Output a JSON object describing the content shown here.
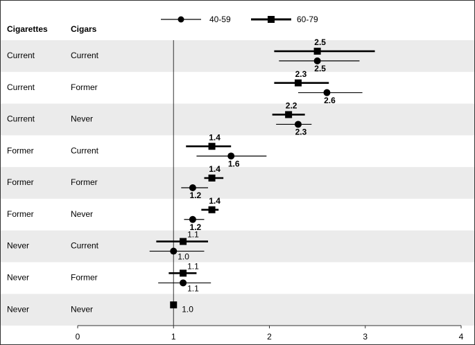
{
  "chart_data": {
    "type": "forest",
    "columns": [
      "Cigarettes",
      "Cigars"
    ],
    "categories": [
      [
        "Current",
        "Current"
      ],
      [
        "Current",
        "Former"
      ],
      [
        "Current",
        "Never"
      ],
      [
        "Former",
        "Current"
      ],
      [
        "Former",
        "Former"
      ],
      [
        "Former",
        "Never"
      ],
      [
        "Never",
        "Current"
      ],
      [
        "Never",
        "Former"
      ],
      [
        "Never",
        "Never"
      ]
    ],
    "series": [
      {
        "name": "40-59",
        "color": "#000000",
        "marker": "circle",
        "values": [
          2.5,
          2.6,
          2.3,
          1.6,
          1.2,
          1.2,
          1.0,
          1.1,
          null
        ],
        "value_labels": [
          "2.5",
          "2.6",
          "2.3",
          "1.6",
          "1.2",
          "1.2",
          "1.0",
          "1.1",
          null
        ],
        "lower": [
          2.1,
          2.3,
          2.07,
          1.24,
          1.08,
          1.11,
          0.75,
          0.84,
          null
        ],
        "upper": [
          2.94,
          2.97,
          2.44,
          1.97,
          1.36,
          1.32,
          1.32,
          1.39,
          null
        ]
      },
      {
        "name": "60-79",
        "color": "#000000",
        "marker": "square",
        "values": [
          2.5,
          2.3,
          2.2,
          1.4,
          1.4,
          1.4,
          1.1,
          1.1,
          1.0
        ],
        "value_labels": [
          "2.5",
          "2.3",
          "2.2",
          "1.4",
          "1.4",
          "1.4",
          "1.1",
          "1.1",
          "1.0"
        ],
        "lower": [
          2.05,
          2.05,
          2.03,
          1.13,
          1.32,
          1.29,
          0.82,
          0.95,
          null
        ],
        "upper": [
          3.1,
          2.62,
          2.37,
          1.6,
          1.52,
          1.47,
          1.36,
          1.24,
          null
        ]
      }
    ],
    "xlim": [
      0,
      4
    ],
    "xticks": [
      0,
      1,
      2,
      3,
      4
    ],
    "reference_line": 1
  }
}
